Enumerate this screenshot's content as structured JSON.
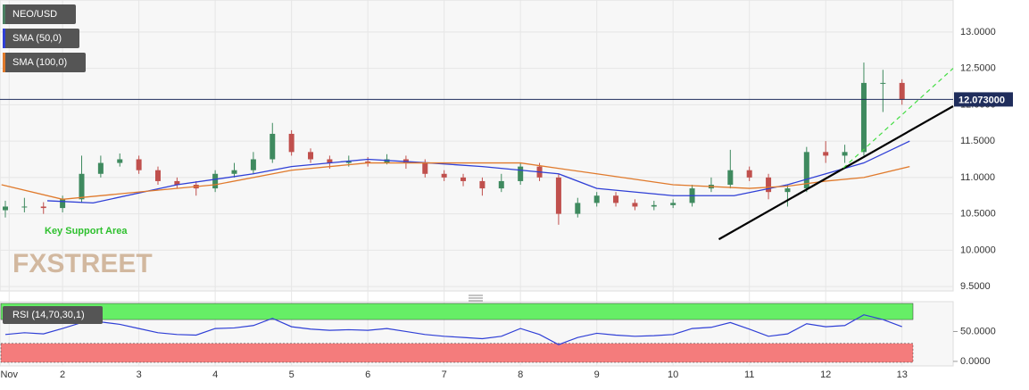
{
  "chart_data": [
    {
      "type": "candlestick",
      "xlim": [
        1.18,
        13.67
      ],
      "xticks": [
        {
          "value": 1.3,
          "label": "Nov"
        },
        2,
        3,
        4,
        5,
        6,
        7,
        8,
        9,
        10,
        11,
        12,
        13
      ],
      "ylim": [
        9.44,
        13.44
      ],
      "yticks": [
        {
          "value": 9.5,
          "label": "9.5000"
        },
        {
          "value": 10,
          "label": "10.0000"
        },
        {
          "value": 10.5,
          "label": "10.5000"
        },
        {
          "value": 11,
          "label": "11.0000"
        },
        {
          "value": 11.5,
          "label": "11.5000"
        },
        {
          "value": 12,
          "label": "12.0000"
        },
        {
          "value": 12.5,
          "label": "12.5000"
        },
        {
          "value": 13,
          "label": "13.0000"
        }
      ],
      "grid": true,
      "series": [
        {
          "name": "NEO/USD",
          "color": "#4a7f62",
          "color_up": "#3f8a5f",
          "color_down": "#c0504d",
          "x": [
            1.25,
            1.5,
            1.75,
            2,
            2.25,
            2.5,
            2.75,
            3,
            3.25,
            3.5,
            3.75,
            4,
            4.25,
            4.5,
            4.75,
            5,
            5.25,
            5.5,
            5.75,
            6,
            6.25,
            6.5,
            6.75,
            7,
            7.25,
            7.5,
            7.75,
            8,
            8.25,
            8.5,
            8.75,
            9,
            9.25,
            9.5,
            9.75,
            10,
            10.25,
            10.5,
            10.75,
            11,
            11.25,
            11.5,
            11.75,
            12,
            12.25,
            12.5,
            12.75,
            13
          ],
          "open": [
            10.55,
            10.6,
            10.6,
            10.58,
            10.7,
            11.05,
            11.2,
            11.25,
            11.1,
            10.95,
            10.9,
            10.85,
            11.05,
            11.1,
            11.25,
            11.6,
            11.35,
            11.25,
            11.2,
            11.22,
            11.2,
            11.25,
            11.2,
            11.05,
            11,
            10.95,
            10.85,
            10.95,
            11.15,
            11,
            10.5,
            10.65,
            10.75,
            10.65,
            10.6,
            10.62,
            10.65,
            10.85,
            10.9,
            11.1,
            11,
            10.8,
            10.85,
            11.35,
            11.3,
            11.35,
            12.3,
            12.3
          ],
          "high": [
            10.68,
            10.72,
            10.66,
            10.75,
            11.3,
            11.3,
            11.33,
            11.3,
            11.15,
            11,
            10.95,
            11.1,
            11.2,
            11.35,
            11.75,
            11.65,
            11.4,
            11.3,
            11.3,
            11.28,
            11.32,
            11.3,
            11.25,
            11.1,
            11.05,
            11,
            11.05,
            11.2,
            11.2,
            11.05,
            10.72,
            10.8,
            10.8,
            10.7,
            10.68,
            10.7,
            10.9,
            11,
            11.38,
            11.15,
            11.05,
            10.9,
            11.42,
            11.5,
            11.45,
            12.58,
            12.48,
            12.35
          ],
          "low": [
            10.45,
            10.52,
            10.5,
            10.52,
            10.65,
            11,
            11.15,
            11.05,
            10.9,
            10.85,
            10.75,
            10.8,
            11,
            11.05,
            11.2,
            11.3,
            11.2,
            11.12,
            11.15,
            11.15,
            11.18,
            11.12,
            11,
            10.95,
            10.88,
            10.75,
            10.8,
            10.9,
            10.95,
            10.35,
            10.45,
            10.6,
            10.6,
            10.55,
            10.55,
            10.58,
            10.6,
            10.8,
            10.85,
            10.95,
            10.7,
            10.6,
            10.8,
            11.2,
            11.2,
            11.3,
            11.9,
            12
          ],
          "close": [
            10.6,
            10.6,
            10.58,
            10.7,
            11.05,
            11.2,
            11.25,
            11.1,
            10.95,
            10.9,
            10.85,
            11.05,
            11.1,
            11.25,
            11.6,
            11.35,
            11.25,
            11.2,
            11.22,
            11.2,
            11.25,
            11.2,
            11.05,
            11,
            10.95,
            10.85,
            10.95,
            11.15,
            11,
            10.5,
            10.65,
            10.75,
            10.65,
            10.6,
            10.62,
            10.65,
            10.85,
            10.9,
            11.1,
            11,
            10.8,
            10.85,
            11.35,
            11.3,
            11.35,
            12.3,
            12.3,
            12.07
          ]
        },
        {
          "name": "SMA (50,0)",
          "color": "#2f3fd6",
          "x": [
            1.8,
            2.4,
            3.5,
            4.5,
            5,
            6,
            6.8,
            7.5,
            8.5,
            9,
            10,
            10.8,
            11.5,
            12,
            12.5,
            13.1
          ],
          "values": [
            10.68,
            10.65,
            10.9,
            11.05,
            11.15,
            11.25,
            11.2,
            11.15,
            11.05,
            10.85,
            10.75,
            10.75,
            10.9,
            11.05,
            11.2,
            11.5
          ]
        },
        {
          "name": "SMA (100,0)",
          "color": "#e07a2c",
          "x": [
            1.2,
            2,
            3,
            4,
            5,
            6,
            7,
            8,
            9,
            10,
            11,
            11.5,
            12,
            12.5,
            13.1
          ],
          "values": [
            10.9,
            10.7,
            10.8,
            10.9,
            11.1,
            11.2,
            11.2,
            11.2,
            11.05,
            10.9,
            10.85,
            10.88,
            10.95,
            11,
            11.15
          ]
        }
      ],
      "trend_lines": [
        {
          "color": "#000000",
          "dashed": false,
          "x": [
            10.6,
            13.67
          ],
          "values": [
            10.15,
            11.98
          ]
        },
        {
          "color": "#44dd44",
          "dashed": true,
          "x": [
            12.23,
            13.67
          ],
          "values": [
            11.13,
            12.5
          ]
        }
      ],
      "last_price": {
        "value": 12.073,
        "label": "12.073000",
        "color": "#1f2d5c"
      },
      "annotation": "Key Support Area",
      "watermark": "FXSTREET"
    },
    {
      "type": "line",
      "name": "RSI (14,70,30,1)",
      "color": "#2f3fd6",
      "ylim": [
        -7.6,
        100
      ],
      "yticks": [
        {
          "value": 0,
          "label": "0.0000"
        },
        {
          "value": 50,
          "label": "50.0000"
        }
      ],
      "overbought": 70,
      "oversold": 30,
      "overbought_color": "#66ee66",
      "oversold_color": "#f47c7c",
      "x": [
        1.25,
        1.5,
        1.75,
        2,
        2.25,
        2.5,
        2.75,
        3,
        3.25,
        3.5,
        3.75,
        4,
        4.25,
        4.5,
        4.75,
        5,
        5.25,
        5.5,
        5.75,
        6,
        6.25,
        6.5,
        6.75,
        7,
        7.25,
        7.5,
        7.75,
        8,
        8.25,
        8.5,
        8.75,
        9,
        9.25,
        9.5,
        9.75,
        10,
        10.25,
        10.5,
        10.75,
        11,
        11.25,
        11.5,
        11.75,
        12,
        12.25,
        12.5,
        12.75,
        13
      ],
      "values": [
        45,
        48,
        46,
        55,
        65,
        66,
        62,
        55,
        48,
        45,
        44,
        55,
        56,
        60,
        72,
        58,
        54,
        52,
        53,
        52,
        55,
        50,
        45,
        42,
        40,
        38,
        42,
        55,
        45,
        28,
        40,
        47,
        44,
        42,
        43,
        45,
        55,
        57,
        65,
        54,
        42,
        46,
        63,
        58,
        60,
        78,
        70,
        58
      ]
    }
  ]
}
